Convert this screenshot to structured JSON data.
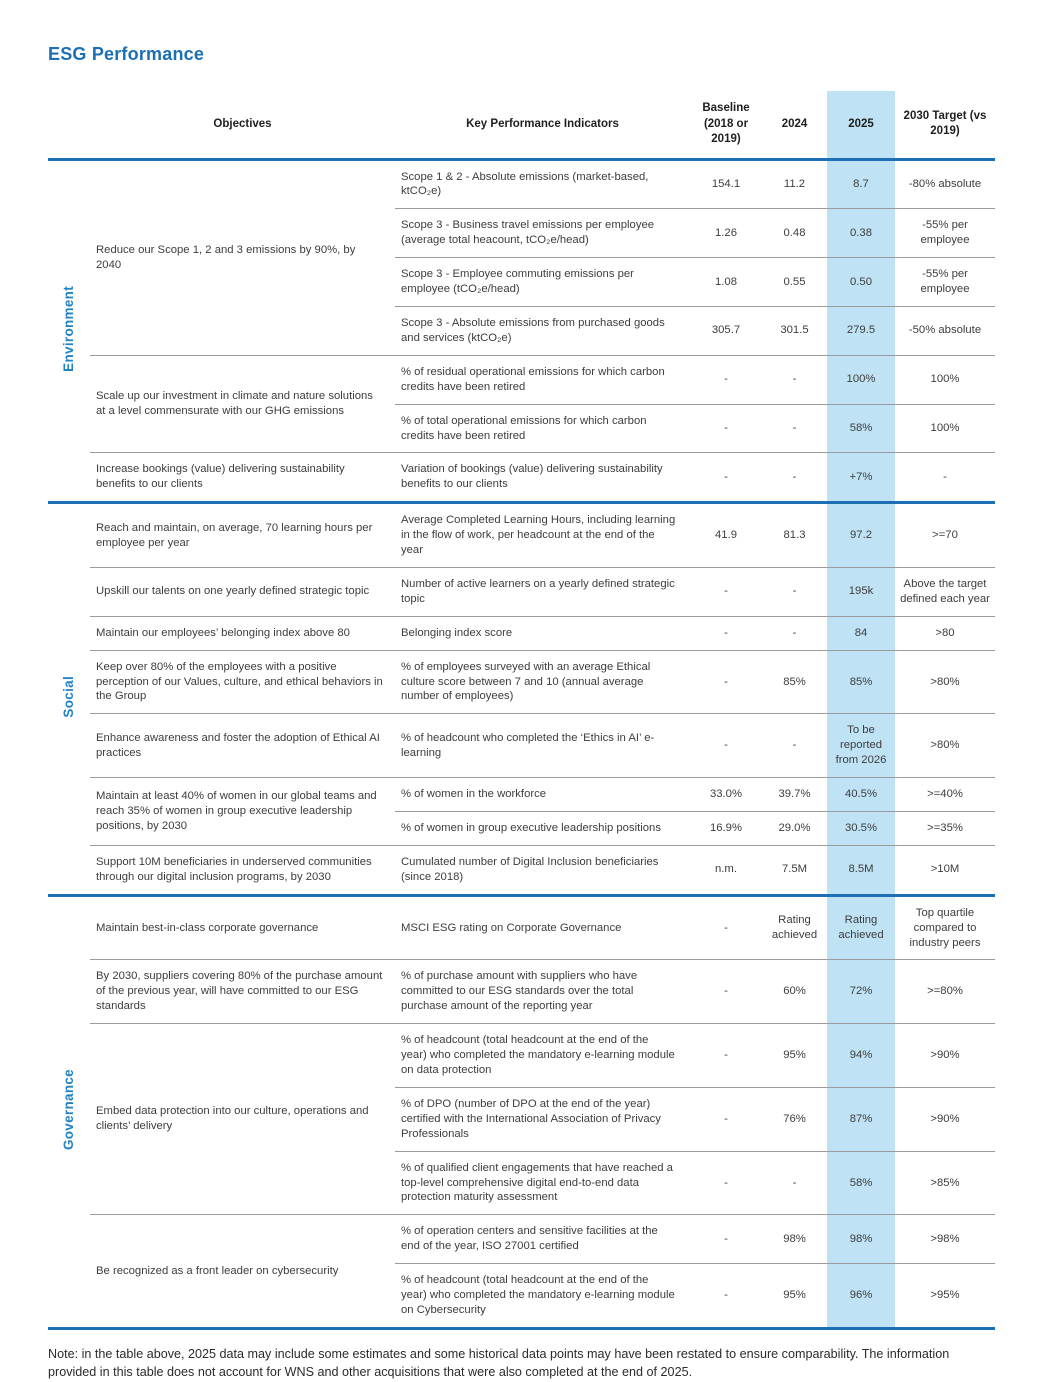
{
  "page": {
    "title": "ESG Performance",
    "note": "Note: in the table above, 2025 data may include some estimates and some historical data points may have been restated to ensure comparability. The information provided in this table does not account for WNS and other acquisitions that were also completed at the end of 2025."
  },
  "colors": {
    "accent_blue": "#1d6fb5",
    "section_label_blue": "#2183c5",
    "highlight_2025": "#bfe3f5",
    "divider_gray": "#9b9b9b"
  },
  "table": {
    "headers": {
      "objectives": "Objectives",
      "kpi": "Key Performance Indicators",
      "baseline": "Baseline (2018 or 2019)",
      "y2024": "2024",
      "y2025": "2025",
      "target": "2030 Target (vs 2019)"
    },
    "sections": [
      {
        "label": "Environment",
        "objectives": [
          {
            "text": "Reduce our Scope 1, 2 and 3 emissions by 90%, by 2040",
            "kpis": [
              {
                "kpi": "Scope 1 & 2 - Absolute emissions (market-based, ktCO₂e)",
                "baseline": "154.1",
                "y2024": "11.2",
                "y2025": "8.7",
                "target": "-80% absolute"
              },
              {
                "kpi": "Scope 3 - Business travel emissions per employee (average total heacount, tCO₂e/head)",
                "baseline": "1.26",
                "y2024": "0.48",
                "y2025": "0.38",
                "target": "-55% per employee"
              },
              {
                "kpi": "Scope 3 - Employee commuting emissions per employee (tCO₂e/head)",
                "baseline": "1.08",
                "y2024": "0.55",
                "y2025": "0.50",
                "target": "-55% per employee"
              },
              {
                "kpi": "Scope 3 - Absolute emissions from purchased goods and services (ktCO₂e)",
                "baseline": "305.7",
                "y2024": "301.5",
                "y2025": "279.5",
                "target": "-50% absolute"
              }
            ]
          },
          {
            "text": "Scale up our investment in climate and nature solutions at a level commensurate with our GHG emissions",
            "kpis": [
              {
                "kpi": "% of residual operational emissions for which carbon credits have been retired",
                "baseline": "-",
                "y2024": "-",
                "y2025": "100%",
                "target": "100%"
              },
              {
                "kpi": "% of total operational emissions for which carbon credits have been retired",
                "baseline": "-",
                "y2024": "-",
                "y2025": "58%",
                "target": "100%"
              }
            ]
          },
          {
            "text": "Increase bookings (value) delivering sustainability benefits to our clients",
            "kpis": [
              {
                "kpi": "Variation of bookings (value) delivering sustainability benefits to our clients",
                "baseline": "-",
                "y2024": "-",
                "y2025": "+7%",
                "target": "-"
              }
            ]
          }
        ]
      },
      {
        "label": "Social",
        "objectives": [
          {
            "text": "Reach and maintain, on average, 70 learning hours per employee per year",
            "kpis": [
              {
                "kpi": "Average Completed Learning Hours, including learning in the flow of work, per headcount at the end of the year",
                "baseline": "41.9",
                "y2024": "81.3",
                "y2025": "97.2",
                "target": ">=70"
              }
            ]
          },
          {
            "text": "Upskill our talents on one yearly defined strategic topic",
            "kpis": [
              {
                "kpi": "Number of active learners on a yearly defined strategic topic",
                "baseline": "-",
                "y2024": "-",
                "y2025": "195k",
                "target": "Above the target defined each year"
              }
            ]
          },
          {
            "text": "Maintain our employees’ belonging index above 80",
            "kpis": [
              {
                "kpi": "Belonging index score",
                "baseline": "-",
                "y2024": "-",
                "y2025": "84",
                "target": ">80"
              }
            ]
          },
          {
            "text": "Keep over 80% of the employees with a positive perception of our Values, culture, and ethical behaviors in the Group",
            "kpis": [
              {
                "kpi": "% of employees surveyed with an average Ethical culture score between 7 and 10 (annual average number of employees)",
                "baseline": "-",
                "y2024": "85%",
                "y2025": "85%",
                "target": ">80%"
              }
            ]
          },
          {
            "text": "Enhance awareness and foster the adoption of Ethical AI practices",
            "kpis": [
              {
                "kpi": "% of headcount who completed the ‘Ethics in AI’ e-learning",
                "baseline": "-",
                "y2024": "-",
                "y2025": "To be reported from 2026",
                "target": ">80%"
              }
            ]
          },
          {
            "text": "Maintain at least 40% of women in our global teams and reach 35% of women in group executive leadership positions, by 2030",
            "kpis": [
              {
                "kpi": "% of women in the workforce",
                "baseline": "33.0%",
                "y2024": "39.7%",
                "y2025": "40.5%",
                "target": ">=40%"
              },
              {
                "kpi": "% of women in group executive leadership positions",
                "baseline": "16.9%",
                "y2024": "29.0%",
                "y2025": "30.5%",
                "target": ">=35%"
              }
            ]
          },
          {
            "text": "Support 10M beneficiaries in underserved communities through our digital inclusion programs, by 2030",
            "kpis": [
              {
                "kpi": "Cumulated number of Digital Inclusion beneficiaries (since 2018)",
                "baseline": "n.m.",
                "y2024": "7.5M",
                "y2025": "8.5M",
                "target": ">10M"
              }
            ]
          }
        ]
      },
      {
        "label": "Governance",
        "objectives": [
          {
            "text": "Maintain best-in-class corporate governance",
            "kpis": [
              {
                "kpi": "MSCI ESG rating on Corporate Governance",
                "baseline": "-",
                "y2024": "Rating achieved",
                "y2025": "Rating achieved",
                "target": "Top quartile compared to industry peers"
              }
            ]
          },
          {
            "text": "By 2030, suppliers covering 80% of the purchase amount of the previous year, will have committed to our ESG standards",
            "kpis": [
              {
                "kpi": "% of purchase amount with suppliers who have committed to our ESG standards over the total purchase amount of the reporting year",
                "baseline": "-",
                "y2024": "60%",
                "y2025": "72%",
                "target": ">=80%"
              }
            ]
          },
          {
            "text": "Embed data protection into our culture, operations and clients’ delivery",
            "kpis": [
              {
                "kpi": "% of headcount (total headcount at the end of the year) who completed the mandatory e-learning module on data protection",
                "baseline": "-",
                "y2024": "95%",
                "y2025": "94%",
                "target": ">90%"
              },
              {
                "kpi": "% of DPO (number of DPO at the end of the year) certified with the International Association of Privacy Professionals",
                "baseline": "-",
                "y2024": "76%",
                "y2025": "87%",
                "target": ">90%"
              },
              {
                "kpi": "% of qualified client engagements that have reached a top-level comprehensive digital end-to-end data protection maturity assessment",
                "baseline": "-",
                "y2024": "-",
                "y2025": "58%",
                "target": ">85%"
              }
            ]
          },
          {
            "text": "Be recognized as a front leader on cybersecurity",
            "kpis": [
              {
                "kpi": "% of operation centers and sensitive facilities at the end of the year, ISO 27001 certified",
                "baseline": "-",
                "y2024": "98%",
                "y2025": "98%",
                "target": ">98%"
              },
              {
                "kpi": "% of headcount (total headcount at the end of the year) who completed the mandatory e-learning module on Cybersecurity",
                "baseline": "-",
                "y2024": "95%",
                "y2025": "96%",
                "target": ">95%"
              }
            ]
          }
        ]
      }
    ]
  }
}
